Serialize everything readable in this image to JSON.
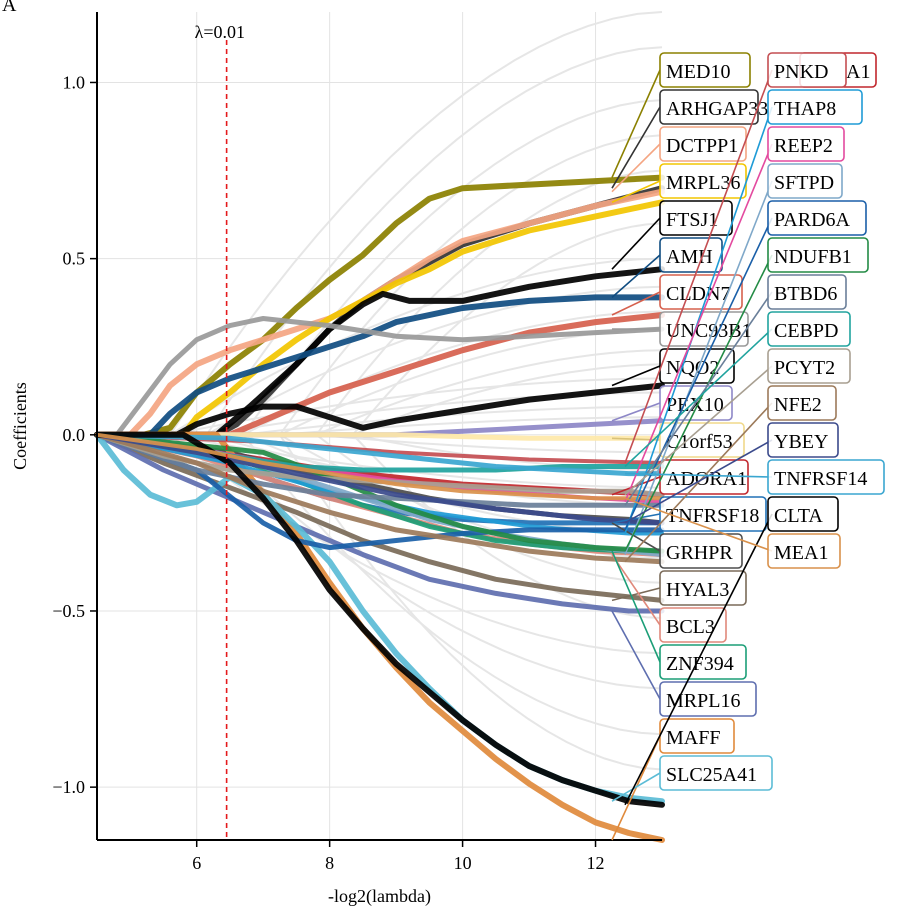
{
  "panel_letter": "A",
  "chart_data": {
    "type": "line",
    "title": "",
    "xlabel": "-log2(lambda)",
    "ylabel": "Coefficients",
    "xlim": [
      4.5,
      13.0
    ],
    "ylim": [
      -1.15,
      1.2
    ],
    "xticks": [
      6,
      8,
      10,
      12
    ],
    "yticks": [
      -1.0,
      -0.5,
      0.0,
      0.5,
      1.0
    ],
    "ytick_labels": [
      "−1.0",
      "−0.5",
      "0.0",
      "0.5",
      "1.0"
    ],
    "grid": true,
    "vline": {
      "x": 6.45,
      "label": "λ=0.01",
      "color": "#e41a1c"
    },
    "series": [
      {
        "name": "MED10",
        "color": "#8b8000",
        "width": 6,
        "x": [
          4.5,
          5.2,
          5.6,
          6.0,
          6.5,
          7.0,
          7.5,
          8.0,
          8.5,
          9.0,
          9.5,
          10.0,
          11.0,
          12.0,
          13.0
        ],
        "y": [
          0,
          0,
          0.02,
          0.12,
          0.2,
          0.27,
          0.36,
          0.44,
          0.51,
          0.6,
          0.67,
          0.7,
          0.71,
          0.72,
          0.73
        ]
      },
      {
        "name": "ARHGAP33",
        "color": "#333333",
        "width": 6,
        "x": [
          4.5,
          6.3,
          6.6,
          7.0,
          7.5,
          8.0,
          8.5,
          9.0,
          9.5,
          10.0,
          11.0,
          12.0,
          13.0
        ],
        "y": [
          0,
          0,
          0.03,
          0.1,
          0.2,
          0.3,
          0.38,
          0.44,
          0.49,
          0.54,
          0.6,
          0.65,
          0.7
        ]
      },
      {
        "name": "DCTPP1",
        "color": "#f4a582",
        "width": 6,
        "x": [
          4.5,
          5.0,
          5.3,
          5.6,
          6.0,
          6.5,
          7.0,
          7.5,
          8.0,
          8.5,
          9.0,
          9.5,
          10.0,
          11.0,
          12.0,
          13.0
        ],
        "y": [
          0,
          0,
          0.06,
          0.14,
          0.2,
          0.24,
          0.27,
          0.3,
          0.33,
          0.38,
          0.44,
          0.5,
          0.55,
          0.6,
          0.65,
          0.69
        ]
      },
      {
        "name": "MRPL36",
        "color": "#f2c500",
        "width": 6,
        "x": [
          4.5,
          5.8,
          6.0,
          6.5,
          7.0,
          7.5,
          8.0,
          8.5,
          9.0,
          9.5,
          10.0,
          11.0,
          12.0,
          13.0
        ],
        "y": [
          0,
          0,
          0.05,
          0.12,
          0.2,
          0.27,
          0.33,
          0.38,
          0.43,
          0.47,
          0.52,
          0.58,
          0.62,
          0.66
        ]
      },
      {
        "name": "FTSJ1",
        "color": "#000000",
        "width": 6,
        "x": [
          4.5,
          6.3,
          6.8,
          7.5,
          8.0,
          8.5,
          8.8,
          9.2,
          10.0,
          11.0,
          12.0,
          13.0
        ],
        "y": [
          0,
          0,
          0.08,
          0.2,
          0.3,
          0.37,
          0.4,
          0.38,
          0.38,
          0.42,
          0.45,
          0.47
        ]
      },
      {
        "name": "AMH",
        "color": "#0f4c81",
        "width": 6,
        "x": [
          4.5,
          5.3,
          5.6,
          6.0,
          6.5,
          7.0,
          7.5,
          8.0,
          8.5,
          9.0,
          10.0,
          11.0,
          12.0,
          13.0
        ],
        "y": [
          0,
          0,
          0.06,
          0.12,
          0.16,
          0.19,
          0.22,
          0.25,
          0.28,
          0.32,
          0.36,
          0.38,
          0.39,
          0.39
        ]
      },
      {
        "name": "CLDN7",
        "color": "#d6604d",
        "width": 6,
        "x": [
          4.5,
          6.5,
          7.0,
          8.0,
          9.0,
          10.0,
          11.0,
          12.0,
          13.0
        ],
        "y": [
          0,
          0,
          0.04,
          0.12,
          0.18,
          0.24,
          0.29,
          0.32,
          0.34
        ]
      },
      {
        "name": "UNC93B1",
        "color": "#999999",
        "width": 5,
        "x": [
          4.5,
          4.8,
          5.2,
          5.6,
          6.0,
          6.5,
          7.0,
          7.5,
          8.0,
          9.0,
          10.0,
          11.0,
          12.0,
          13.0
        ],
        "y": [
          0,
          0,
          0.1,
          0.2,
          0.27,
          0.31,
          0.33,
          0.32,
          0.31,
          0.28,
          0.27,
          0.28,
          0.29,
          0.3
        ]
      },
      {
        "name": "NQO2",
        "color": "#000000",
        "width": 6,
        "x": [
          4.5,
          5.7,
          6.0,
          6.5,
          7.0,
          7.5,
          8.0,
          8.5,
          9.0,
          10.0,
          11.0,
          12.0,
          13.0
        ],
        "y": [
          0,
          0,
          0.03,
          0.06,
          0.08,
          0.08,
          0.05,
          0.02,
          0.04,
          0.07,
          0.1,
          0.12,
          0.14
        ]
      },
      {
        "name": "PEX10",
        "color": "#8d87c7",
        "width": 5,
        "x": [
          4.5,
          8.0,
          9.0,
          10.0,
          11.0,
          12.0,
          13.0
        ],
        "y": [
          0,
          0,
          0,
          0.01,
          0.02,
          0.03,
          0.04
        ]
      },
      {
        "name": "C1orf53",
        "color": "#fee8a8",
        "width": 5,
        "x": [
          4.5,
          9.0,
          10.0,
          11.0,
          12.0,
          13.0
        ],
        "y": [
          0,
          0,
          -0.005,
          -0.01,
          -0.01,
          -0.01
        ]
      },
      {
        "name": "ADORA1",
        "color": "#c1272d",
        "width": 5,
        "x": [
          4.5,
          5.0,
          6.0,
          7.0,
          8.0,
          9.0,
          10.0,
          11.0,
          12.0,
          13.0
        ],
        "y": [
          0,
          -0.01,
          -0.04,
          -0.07,
          -0.1,
          -0.12,
          -0.14,
          -0.15,
          -0.16,
          -0.17
        ]
      },
      {
        "name": "TNFRSF18",
        "color": "#2171b5",
        "width": 5,
        "x": [
          4.5,
          6.0,
          7.0,
          8.0,
          9.0,
          10.0,
          11.0,
          12.0,
          13.0
        ],
        "y": [
          0,
          -0.05,
          -0.12,
          -0.18,
          -0.22,
          -0.24,
          -0.25,
          -0.25,
          -0.25
        ]
      },
      {
        "name": "GRHPR",
        "color": "#4d4d4d",
        "width": 5,
        "x": [
          4.5,
          6.5,
          7.5,
          8.5,
          9.5,
          10.5,
          11.5,
          12.5,
          13.0
        ],
        "y": [
          0,
          -0.05,
          -0.1,
          -0.14,
          -0.18,
          -0.21,
          -0.23,
          -0.24,
          -0.25
        ]
      },
      {
        "name": "HYAL3",
        "color": "#7a6a58",
        "width": 5,
        "x": [
          4.5,
          5.5,
          6.5,
          7.5,
          8.5,
          9.5,
          10.5,
          11.5,
          12.5,
          13.0
        ],
        "y": [
          0,
          -0.08,
          -0.15,
          -0.22,
          -0.3,
          -0.36,
          -0.41,
          -0.44,
          -0.46,
          -0.47
        ]
      },
      {
        "name": "BCL3",
        "color": "#e0897b",
        "width": 5,
        "x": [
          4.5,
          6.0,
          7.0,
          8.0,
          9.0,
          10.0,
          11.0,
          12.0,
          13.0
        ],
        "y": [
          0,
          -0.06,
          -0.12,
          -0.18,
          -0.23,
          -0.28,
          -0.31,
          -0.33,
          -0.34
        ]
      },
      {
        "name": "ZNF394",
        "color": "#1b9e77",
        "width": 5,
        "x": [
          4.5,
          6.5,
          7.5,
          8.5,
          9.5,
          10.5,
          11.5,
          12.5,
          13.0
        ],
        "y": [
          0,
          -0.06,
          -0.13,
          -0.2,
          -0.26,
          -0.3,
          -0.32,
          -0.33,
          -0.33
        ]
      },
      {
        "name": "MRPL16",
        "color": "#5e6eaf",
        "width": 5,
        "x": [
          4.5,
          5.5,
          6.5,
          7.5,
          8.5,
          9.5,
          10.5,
          11.5,
          12.5,
          13.0
        ],
        "y": [
          0,
          -0.1,
          -0.18,
          -0.26,
          -0.34,
          -0.41,
          -0.45,
          -0.48,
          -0.5,
          -0.5
        ]
      },
      {
        "name": "MAFF",
        "color": "#e08a3c",
        "width": 6,
        "x": [
          4.5,
          6.3,
          6.8,
          7.5,
          8.0,
          8.5,
          9.0,
          9.5,
          10.0,
          10.5,
          11.0,
          11.5,
          12.0,
          12.5,
          13.0
        ],
        "y": [
          0,
          0,
          -0.12,
          -0.28,
          -0.42,
          -0.55,
          -0.66,
          -0.76,
          -0.84,
          -0.92,
          -0.99,
          -1.05,
          -1.1,
          -1.13,
          -1.15
        ]
      },
      {
        "name": "SLC25A41",
        "color": "#5bbcd6",
        "width": 6,
        "x": [
          4.5,
          4.9,
          5.3,
          5.7,
          6.0,
          6.5,
          7.0,
          7.5,
          8.0,
          8.5,
          9.0,
          9.5,
          10.0,
          10.5,
          11.0,
          11.5,
          12.0,
          12.5,
          13.0
        ],
        "y": [
          0,
          -0.1,
          -0.17,
          -0.2,
          -0.19,
          -0.12,
          -0.17,
          -0.26,
          -0.36,
          -0.5,
          -0.62,
          -0.72,
          -0.81,
          -0.88,
          -0.94,
          -0.98,
          -1.01,
          -1.03,
          -1.04
        ]
      },
      {
        "name": "PNKD",
        "color": "#c44e52",
        "width": 4,
        "x": [
          4.5,
          7.0,
          9.0,
          11.0,
          13.0
        ],
        "y": [
          0,
          -0.02,
          -0.05,
          -0.07,
          -0.08
        ]
      },
      {
        "name": "THAP8",
        "color": "#1f9bd6",
        "width": 4,
        "x": [
          4.5,
          6.5,
          8.0,
          9.5,
          11.0,
          12.5,
          13.0
        ],
        "y": [
          0,
          -0.08,
          -0.16,
          -0.22,
          -0.26,
          -0.28,
          -0.28
        ]
      },
      {
        "name": "REEP2",
        "color": "#e34a9f",
        "width": 4,
        "x": [
          4.5,
          6.0,
          7.5,
          9.0,
          10.5,
          12.0,
          13.0
        ],
        "y": [
          0,
          -0.04,
          -0.09,
          -0.13,
          -0.16,
          -0.18,
          -0.19
        ]
      },
      {
        "name": "SFTPD",
        "color": "#7fa8c9",
        "width": 5,
        "x": [
          4.5,
          5.5,
          6.5,
          7.5,
          8.5,
          9.5,
          10.5,
          11.5,
          12.5,
          13.0
        ],
        "y": [
          0,
          -0.02,
          -0.06,
          -0.12,
          -0.18,
          -0.24,
          -0.28,
          -0.31,
          -0.33,
          -0.34
        ]
      },
      {
        "name": "PARD6A",
        "color": "#1a5fa8",
        "width": 5,
        "x": [
          4.5,
          6.0,
          7.0,
          7.5,
          8.0,
          9.0,
          10.0,
          11.0,
          12.0,
          13.0
        ],
        "y": [
          0,
          -0.1,
          -0.25,
          -0.3,
          -0.32,
          -0.3,
          -0.28,
          -0.27,
          -0.27,
          -0.27
        ]
      },
      {
        "name": "NDUFB1",
        "color": "#238b45",
        "width": 5,
        "x": [
          4.5,
          7.0,
          8.0,
          9.0,
          10.0,
          11.0,
          12.0,
          13.0
        ],
        "y": [
          0,
          -0.05,
          -0.12,
          -0.2,
          -0.26,
          -0.3,
          -0.32,
          -0.33
        ]
      },
      {
        "name": "BTBD6",
        "color": "#6a7f99",
        "width": 5,
        "x": [
          4.5,
          6.0,
          7.0,
          8.0,
          9.0,
          10.0,
          11.0,
          12.0,
          13.0
        ],
        "y": [
          0,
          -0.1,
          -0.14,
          -0.17,
          -0.18,
          -0.19,
          -0.2,
          -0.2,
          -0.2
        ]
      },
      {
        "name": "CEBPD",
        "color": "#20a39e",
        "width": 5,
        "x": [
          4.5,
          6.5,
          7.5,
          8.5,
          9.5,
          10.5,
          11.5,
          12.5,
          13.0
        ],
        "y": [
          0,
          -0.06,
          -0.09,
          -0.1,
          -0.1,
          -0.1,
          -0.09,
          -0.09,
          -0.09
        ]
      },
      {
        "name": "PCYT2",
        "color": "#a89f91",
        "width": 5,
        "x": [
          4.5,
          5.5,
          6.5,
          7.5,
          8.5,
          9.5,
          10.5,
          11.5,
          12.5,
          13.0
        ],
        "y": [
          0,
          -0.06,
          -0.1,
          -0.12,
          -0.13,
          -0.14,
          -0.15,
          -0.16,
          -0.16,
          -0.17
        ]
      },
      {
        "name": "NFE2",
        "color": "#9c7a5a",
        "width": 5,
        "x": [
          4.5,
          6.0,
          7.0,
          8.0,
          9.0,
          10.0,
          11.0,
          12.0,
          13.0
        ],
        "y": [
          0,
          -0.08,
          -0.16,
          -0.22,
          -0.27,
          -0.3,
          -0.33,
          -0.35,
          -0.36
        ]
      },
      {
        "name": "YBEY",
        "color": "#3b4a8c",
        "width": 5,
        "x": [
          4.5,
          6.0,
          7.5,
          9.0,
          10.5,
          12.0,
          13.0
        ],
        "y": [
          0,
          -0.05,
          -0.11,
          -0.17,
          -0.21,
          -0.24,
          -0.25
        ]
      },
      {
        "name": "TNFRSF14",
        "color": "#3aa6d0",
        "width": 5,
        "x": [
          4.5,
          6.5,
          7.5,
          8.5,
          9.5,
          10.5,
          11.5,
          12.5,
          13.0
        ],
        "y": [
          0,
          -0.01,
          -0.03,
          -0.05,
          -0.07,
          -0.09,
          -0.1,
          -0.11,
          -0.11
        ]
      },
      {
        "name": "CLTA",
        "color": "#000000",
        "width": 6,
        "x": [
          4.5,
          5.8,
          6.5,
          7.0,
          7.5,
          8.0,
          8.5,
          9.0,
          9.5,
          10.0,
          10.5,
          11.0,
          11.5,
          12.0,
          12.5,
          13.0
        ],
        "y": [
          0,
          0,
          -0.08,
          -0.18,
          -0.3,
          -0.44,
          -0.55,
          -0.65,
          -0.73,
          -0.81,
          -0.88,
          -0.94,
          -0.98,
          -1.01,
          -1.04,
          -1.05
        ]
      },
      {
        "name": "MEA1",
        "color": "#d9914b",
        "width": 4,
        "x": [
          4.5,
          6.0,
          7.0,
          8.0,
          9.0,
          10.0,
          11.0,
          12.0,
          13.0
        ],
        "y": [
          0,
          -0.04,
          -0.08,
          -0.11,
          -0.14,
          -0.16,
          -0.17,
          -0.18,
          -0.18
        ]
      }
    ],
    "label_columns": [
      {
        "labels": [
          {
            "text": "MED10",
            "color": "#8b8000"
          },
          {
            "text": "ARHGAP33",
            "color": "#333333"
          },
          {
            "text": "DCTPP1",
            "color": "#f4a582"
          },
          {
            "text": "MRPL36",
            "color": "#f2c500"
          },
          {
            "text": "FTSJ1",
            "color": "#000000"
          },
          {
            "text": "AMH",
            "color": "#0f4c81"
          },
          {
            "text": "CLDN7",
            "color": "#d6604d"
          },
          {
            "text": "UNC93B1",
            "color": "#999999"
          },
          {
            "text": "NQO2",
            "color": "#000000"
          },
          {
            "text": "PEX10",
            "color": "#8d87c7"
          },
          {
            "text": "C1orf53",
            "color": "#fee8a8"
          },
          {
            "text": "ADORA1",
            "color": "#c1272d"
          },
          {
            "text": "TNFRSF18",
            "color": "#2171b5"
          },
          {
            "text": "GRHPR",
            "color": "#4d4d4d"
          },
          {
            "text": "HYAL3",
            "color": "#7a6a58"
          },
          {
            "text": "BCL3",
            "color": "#e0897b"
          },
          {
            "text": "ZNF394",
            "color": "#1b9e77"
          },
          {
            "text": "MRPL16",
            "color": "#5e6eaf"
          },
          {
            "text": "MAFF",
            "color": "#e08a3c"
          },
          {
            "text": "SLC25A41",
            "color": "#5bbcd6"
          }
        ]
      },
      {
        "labels": [
          {
            "text": "PNKD",
            "color": "#c44e52"
          },
          {
            "text": "THAP8",
            "color": "#1f9bd6"
          },
          {
            "text": "REEP2",
            "color": "#e34a9f"
          },
          {
            "text": "SFTPD",
            "color": "#7fa8c9"
          },
          {
            "text": "PARD6A",
            "color": "#1a5fa8"
          },
          {
            "text": "NDUFB1",
            "color": "#238b45"
          },
          {
            "text": "BTBD6",
            "color": "#6a7f99"
          },
          {
            "text": "CEBPD",
            "color": "#20a39e"
          },
          {
            "text": "PCYT2",
            "color": "#a89f91"
          },
          {
            "text": "NFE2",
            "color": "#9c7a5a"
          },
          {
            "text": "YBEY",
            "color": "#3b4a8c"
          },
          {
            "text": "TNFRSF14",
            "color": "#3aa6d0"
          },
          {
            "text": "CLTA",
            "color": "#000000"
          },
          {
            "text": "MEA1",
            "color": "#d9914b"
          }
        ]
      }
    ],
    "hidden_label_fragment": {
      "text": "A1",
      "color": "#c1272d"
    }
  }
}
